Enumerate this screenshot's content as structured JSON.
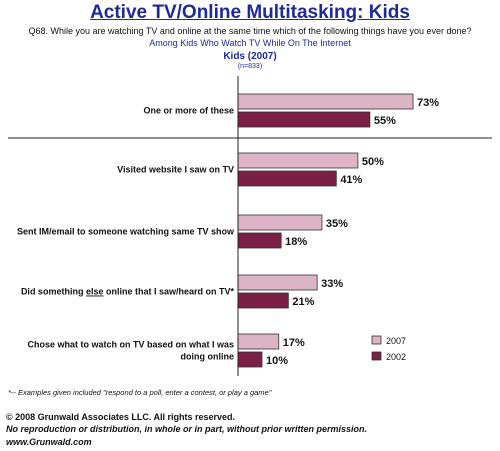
{
  "title": "Active TV/Online Multitasking: Kids",
  "question": "Q68. While you are watching TV and online at the same time which of the following things have you ever done?",
  "subtitle": "Among Kids Who Watch TV While On The Internet",
  "group_label": "Kids (2007)",
  "sample_size": "(n=833)",
  "footnote": "*-- Examples given included \"respond to a poll, enter a contest, or play a game\"",
  "copyright": {
    "line1": "© 2008 Grunwald Associates LLC. All rights reserved.",
    "line2": "No reproduction or distribution, in whole or in part, without prior written permission.",
    "line3": "www.Grunwald.com"
  },
  "colors": {
    "series_2007": "#dcb4c6",
    "series_2002": "#7a1f45",
    "title": "#1e2a9a"
  },
  "chart_data": {
    "type": "bar",
    "orientation": "horizontal",
    "categories": [
      [
        "One or more of these"
      ],
      [
        "Visited website I saw on TV"
      ],
      [
        "Sent IM/email to someone watching same TV show"
      ],
      [
        "Did something else online that I saw/heard on TV*"
      ],
      [
        "Chose what to watch on TV based on what I was",
        "doing online"
      ]
    ],
    "series": [
      {
        "name": "2007",
        "values": [
          73,
          50,
          35,
          33,
          17
        ],
        "labels": [
          "73%",
          "50%",
          "35%",
          "33%",
          "17%"
        ]
      },
      {
        "name": "2002",
        "values": [
          55,
          41,
          18,
          21,
          10
        ],
        "labels": [
          "55%",
          "41%",
          "18%",
          "21%",
          "10%"
        ]
      }
    ],
    "xlim": [
      0,
      100
    ],
    "legend_position": "bottom-right",
    "grid": false
  }
}
